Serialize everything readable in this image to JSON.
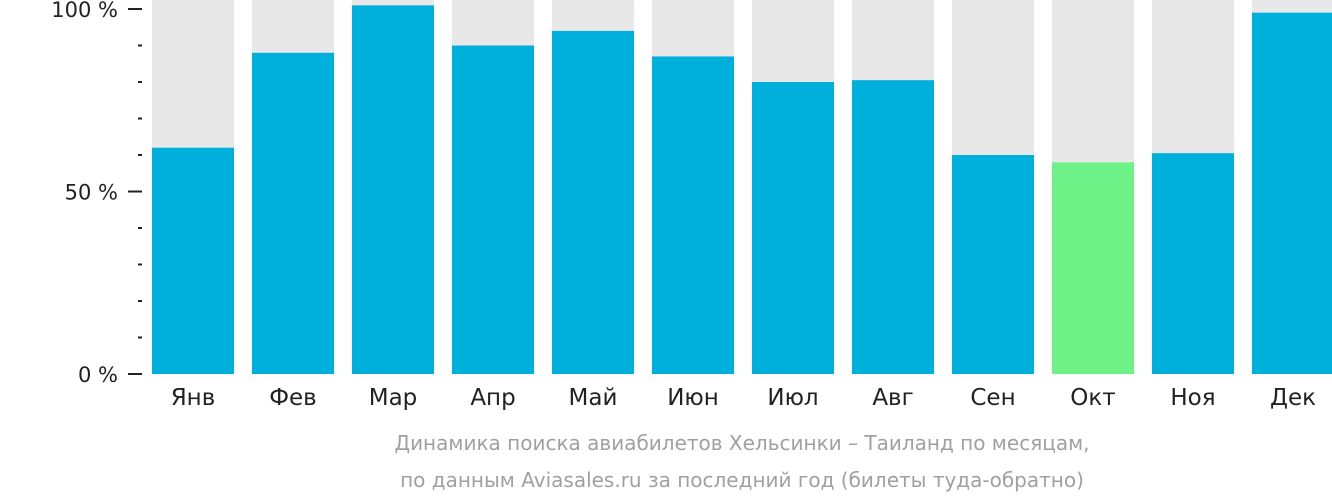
{
  "chart_data": {
    "type": "bar",
    "categories": [
      "Янв",
      "Фев",
      "Мар",
      "Апр",
      "Май",
      "Июн",
      "Июл",
      "Авг",
      "Сен",
      "Окт",
      "Ноя",
      "Дек"
    ],
    "values": [
      62,
      88,
      101,
      90,
      94,
      87,
      80,
      80.5,
      60,
      58,
      60.5,
      99
    ],
    "highlight_index": 9,
    "ylim": [
      0,
      100
    ],
    "yticks": [
      0,
      50,
      100
    ],
    "ytick_labels": [
      "0 %",
      "50 %",
      "100 %"
    ],
    "minor_ticks_per_interval": 5,
    "grid": false,
    "colors": {
      "bar": "#00b0dc",
      "highlight": "#6ef287",
      "track": "#e8e8e8",
      "axis": "#222222",
      "caption": "#a0a0a0"
    }
  },
  "caption": {
    "line1": "Динамика поиска авиабилетов Хельсинки – Таиланд по месяцам,",
    "line2": "по данным Aviasales.ru за последний год (билеты туда-обратно)"
  }
}
